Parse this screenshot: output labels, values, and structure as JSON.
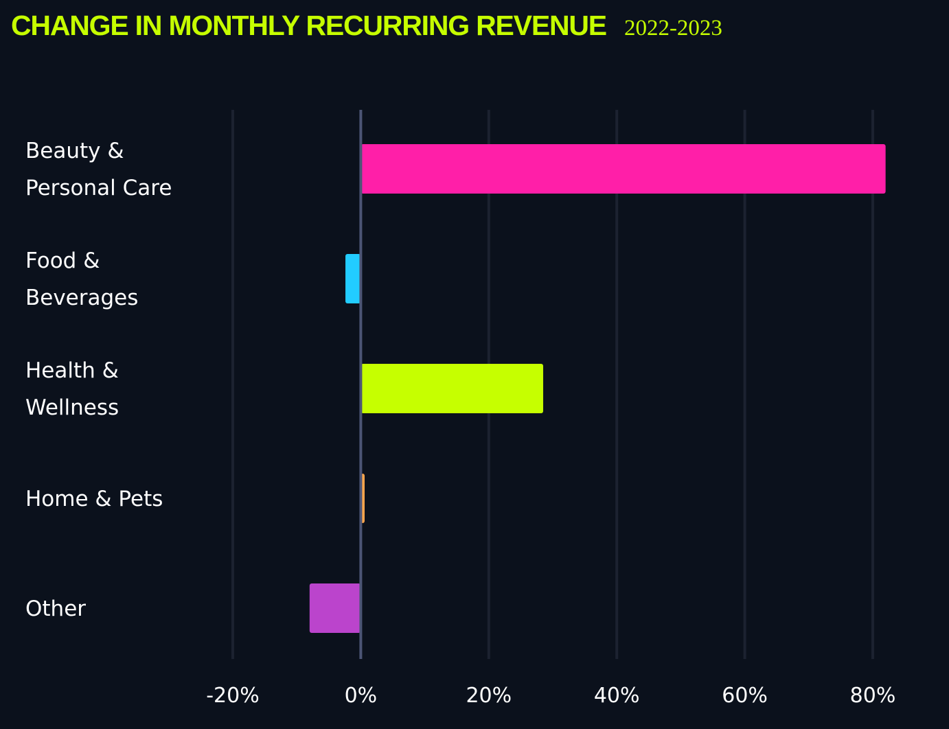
{
  "header": {
    "title": "CHANGE IN MONTHLY RECURRING REVENUE",
    "subtitle": "2022-2023"
  },
  "chart_data": {
    "type": "bar",
    "orientation": "horizontal",
    "title": "CHANGE IN MONTHLY RECURRING REVENUE",
    "subtitle": "2022-2023",
    "xlabel": "",
    "ylabel": "",
    "categories": [
      [
        "Beauty &",
        "Personal Care"
      ],
      [
        "Food &",
        "Beverages"
      ],
      [
        "Health &",
        "Wellness"
      ],
      [
        "Home & Pets"
      ],
      [
        "Other"
      ]
    ],
    "category_names": [
      "Beauty & Personal Care",
      "Food & Beverages",
      "Health & Wellness",
      "Home & Pets",
      "Other"
    ],
    "values": [
      82,
      -2.4,
      28.5,
      0.6,
      -8
    ],
    "colors": [
      "#ff1fa8",
      "#22ccff",
      "#c6ff00",
      "#ffa64d",
      "#bb44cc"
    ],
    "xlim": [
      -20,
      80
    ],
    "xticks": [
      -20,
      0,
      20,
      40,
      60,
      80
    ],
    "xtick_labels": [
      "-20%",
      "0%",
      "20%",
      "40%",
      "60%",
      "80%"
    ],
    "grid": true,
    "grid_color": "#1c2230",
    "zero_line_color": "#4c5575",
    "background": "#0b111c",
    "legend": "none"
  }
}
